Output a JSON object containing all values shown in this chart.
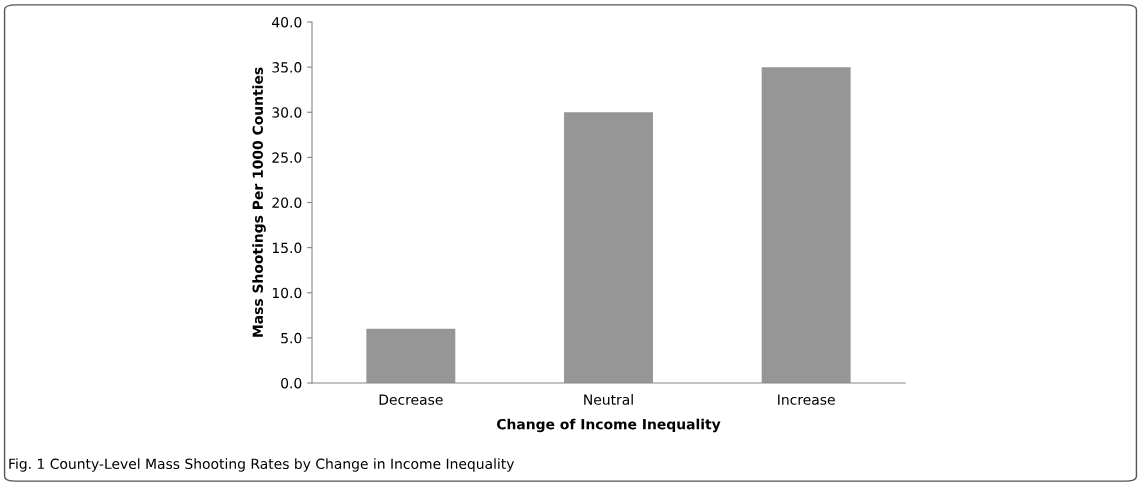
{
  "chart_data": {
    "type": "bar",
    "xlabel": "Change of Income Inequality",
    "ylabel": "Mass Shootings Per 1000 Counties",
    "categories": [
      "Decrease",
      "Neutral",
      "Increase"
    ],
    "values": [
      6.0,
      30.0,
      35.0
    ],
    "color": "#969696",
    "ylim": [
      0,
      40
    ],
    "yticks": [
      {
        "value": 0,
        "label": "0.0"
      },
      {
        "value": 5,
        "label": "5.0"
      },
      {
        "value": 10,
        "label": "10.0"
      },
      {
        "value": 15,
        "label": "15.0"
      },
      {
        "value": 20,
        "label": "20.0"
      },
      {
        "value": 25,
        "label": "25.0"
      },
      {
        "value": 30,
        "label": "30.0"
      },
      {
        "value": 35,
        "label": "35.0"
      },
      {
        "value": 40,
        "label": "40.0"
      }
    ],
    "grid": false,
    "annotations": [
      "Fig. 1 County-Level Mass Shooting Rates by Change in Income Inequality"
    ]
  }
}
